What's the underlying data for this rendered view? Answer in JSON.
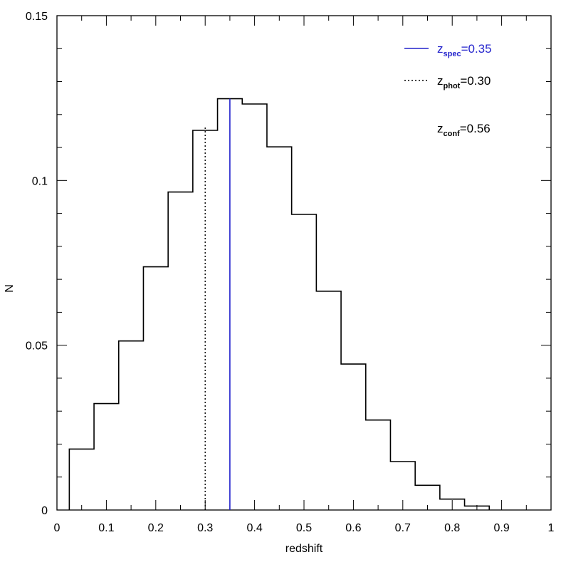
{
  "chart_data": {
    "type": "histogram",
    "xlabel": "redshift",
    "ylabel": "N",
    "xlim": [
      0,
      1
    ],
    "ylim": [
      0,
      0.15
    ],
    "x_ticks": [
      "0",
      "0.1",
      "0.2",
      "0.3",
      "0.4",
      "0.5",
      "0.6",
      "0.7",
      "0.8",
      "0.9",
      "1"
    ],
    "y_ticks": [
      "0",
      "0.05",
      "0.1",
      "0.15"
    ],
    "bin_edges": [
      0.025,
      0.075,
      0.125,
      0.175,
      0.225,
      0.275,
      0.325,
      0.375,
      0.425,
      0.475,
      0.525,
      0.575,
      0.625,
      0.675,
      0.725,
      0.775,
      0.825,
      0.875
    ],
    "values": [
      0.0185,
      0.0323,
      0.0513,
      0.0738,
      0.0965,
      0.1152,
      0.1248,
      0.1232,
      0.1102,
      0.0897,
      0.0664,
      0.0443,
      0.0273,
      0.0147,
      0.0075,
      0.0033,
      0.0012
    ],
    "grid": false,
    "markers": [
      {
        "name": "z_spec",
        "x": 0.35,
        "y_top": 0.1248,
        "style": "solid",
        "color": "#2222cc"
      },
      {
        "name": "z_phot",
        "x": 0.3,
        "y_top": 0.1165,
        "style": "dotted",
        "color": "#000000"
      }
    ],
    "legend": {
      "placement": "top-right",
      "entries": [
        {
          "main": "z",
          "sub": "spec",
          "value": "=0.35",
          "color": "#2222cc",
          "line": "solid"
        },
        {
          "main": "z",
          "sub": "phot",
          "value": "=0.30",
          "color": "#000000",
          "line": "dotted"
        },
        {
          "main": "z",
          "sub": "conf",
          "value": "=0.56",
          "color": "#000000",
          "line": "none"
        }
      ]
    }
  }
}
